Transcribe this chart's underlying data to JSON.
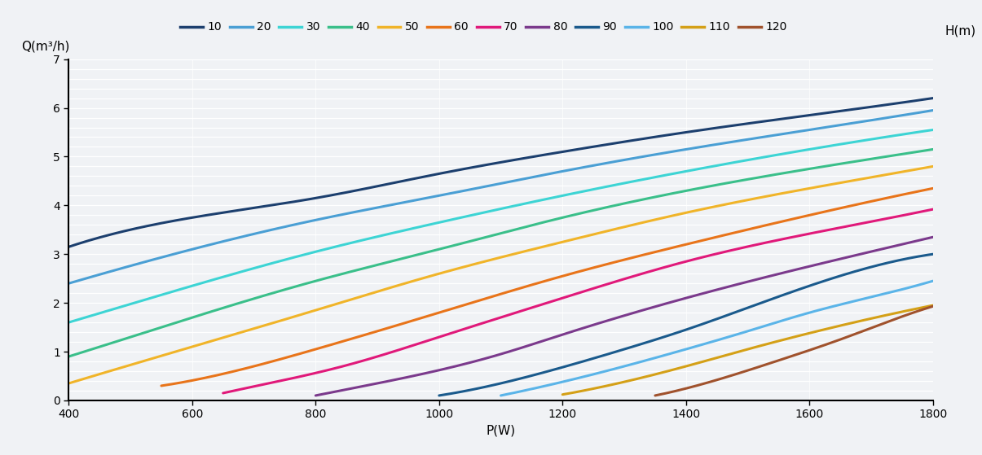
{
  "xlabel": "P(W)",
  "ylabel": "Q(m³/h)",
  "h_label": "H(m)",
  "x_min": 400,
  "x_max": 1800,
  "y_min": 0,
  "y_max": 7,
  "x_ticks": [
    400,
    600,
    800,
    1000,
    1200,
    1400,
    1600,
    1800
  ],
  "y_ticks": [
    0,
    1,
    2,
    3,
    4,
    5,
    6,
    7
  ],
  "bg_color": "#f0f2f5",
  "curves": [
    {
      "label": "10",
      "color": "#1c3f6e",
      "points_x": [
        400,
        600,
        800,
        1000,
        1200,
        1400,
        1600,
        1800
      ],
      "points_y": [
        3.15,
        3.75,
        4.15,
        4.65,
        5.1,
        5.5,
        5.85,
        6.2
      ],
      "power": 0.55
    },
    {
      "label": "20",
      "color": "#4a9fd4",
      "points_x": [
        400,
        600,
        800,
        1000,
        1200,
        1400,
        1600,
        1800
      ],
      "points_y": [
        2.4,
        3.1,
        3.7,
        4.2,
        4.7,
        5.15,
        5.55,
        5.95
      ],
      "power": 0.55
    },
    {
      "label": "30",
      "color": "#3dd4d4",
      "points_x": [
        400,
        600,
        800,
        1000,
        1200,
        1400,
        1600,
        1800
      ],
      "points_y": [
        1.6,
        2.35,
        3.05,
        3.65,
        4.2,
        4.7,
        5.15,
        5.55
      ],
      "power": 0.6
    },
    {
      "label": "40",
      "color": "#3abf8a",
      "points_x": [
        400,
        600,
        800,
        1000,
        1200,
        1400,
        1600,
        1800
      ],
      "points_y": [
        0.9,
        1.7,
        2.45,
        3.1,
        3.75,
        4.3,
        4.75,
        5.15
      ],
      "power": 0.65
    },
    {
      "label": "50",
      "color": "#f0b429",
      "points_x": [
        400,
        600,
        800,
        1000,
        1200,
        1400,
        1600,
        1800
      ],
      "points_y": [
        0.35,
        1.1,
        1.85,
        2.6,
        3.25,
        3.85,
        4.35,
        4.8
      ],
      "power": 0.7
    },
    {
      "label": "60",
      "color": "#e8741a",
      "points_x": [
        550,
        700,
        800,
        1000,
        1200,
        1400,
        1600,
        1800
      ],
      "points_y": [
        0.3,
        0.7,
        1.05,
        1.8,
        2.55,
        3.2,
        3.8,
        4.35
      ],
      "power": 0.75
    },
    {
      "label": "70",
      "color": "#e0197a",
      "points_x": [
        650,
        750,
        850,
        1000,
        1200,
        1400,
        1600,
        1800
      ],
      "points_y": [
        0.15,
        0.42,
        0.72,
        1.3,
        2.1,
        2.85,
        3.42,
        3.92
      ],
      "power": 0.8
    },
    {
      "label": "80",
      "color": "#7b3a8c",
      "points_x": [
        800,
        900,
        1000,
        1100,
        1200,
        1400,
        1600,
        1800
      ],
      "points_y": [
        0.1,
        0.35,
        0.62,
        0.95,
        1.35,
        2.1,
        2.75,
        3.35
      ],
      "power": 0.85
    },
    {
      "label": "90",
      "color": "#1a5a8c",
      "points_x": [
        1000,
        1100,
        1200,
        1300,
        1400,
        1500,
        1600,
        1800
      ],
      "points_y": [
        0.1,
        0.35,
        0.68,
        1.05,
        1.45,
        1.9,
        2.35,
        3.0
      ],
      "power": 0.9
    },
    {
      "label": "100",
      "color": "#5ab4e8",
      "points_x": [
        1100,
        1200,
        1300,
        1400,
        1500,
        1600,
        1700,
        1800
      ],
      "points_y": [
        0.1,
        0.38,
        0.7,
        1.05,
        1.42,
        1.8,
        2.12,
        2.45
      ],
      "power": 0.92
    },
    {
      "label": "110",
      "color": "#d4a017",
      "points_x": [
        1200,
        1300,
        1400,
        1500,
        1600,
        1700,
        1800
      ],
      "points_y": [
        0.12,
        0.38,
        0.7,
        1.05,
        1.38,
        1.68,
        1.95
      ],
      "power": 0.93
    },
    {
      "label": "120",
      "color": "#a0522d",
      "points_x": [
        1350,
        1450,
        1550,
        1650,
        1750,
        1800
      ],
      "points_y": [
        0.1,
        0.42,
        0.82,
        1.25,
        1.72,
        1.93
      ],
      "power": 0.95
    }
  ]
}
